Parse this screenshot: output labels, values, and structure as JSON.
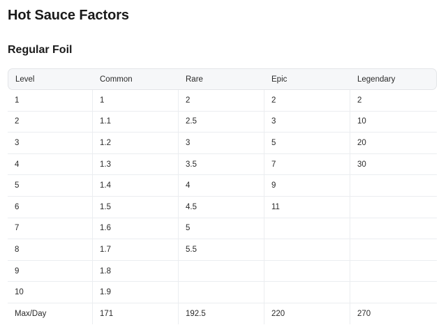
{
  "page": {
    "title": "Hot Sauce Factors"
  },
  "section": {
    "title": "Regular Foil"
  },
  "table": {
    "headers": [
      "Level",
      "Common",
      "Rare",
      "Epic",
      "Legendary"
    ],
    "rows": [
      [
        "1",
        "1",
        "2",
        "2",
        "2"
      ],
      [
        "2",
        "1.1",
        "2.5",
        "3",
        "10"
      ],
      [
        "3",
        "1.2",
        "3",
        "5",
        "20"
      ],
      [
        "4",
        "1.3",
        "3.5",
        "7",
        "30"
      ],
      [
        "5",
        "1.4",
        "4",
        "9",
        ""
      ],
      [
        "6",
        "1.5",
        "4.5",
        "11",
        ""
      ],
      [
        "7",
        "1.6",
        "5",
        "",
        ""
      ],
      [
        "8",
        "1.7",
        "5.5",
        "",
        ""
      ],
      [
        "9",
        "1.8",
        "",
        "",
        ""
      ],
      [
        "10",
        "1.9",
        "",
        "",
        ""
      ],
      [
        "Max/Day",
        "171",
        "192.5",
        "220",
        "270"
      ]
    ]
  }
}
